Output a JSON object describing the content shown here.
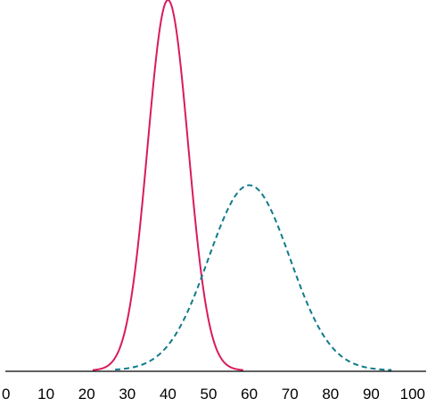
{
  "chart_data": {
    "type": "line",
    "title": "",
    "xlabel": "",
    "ylabel": "",
    "xlim": [
      0,
      100
    ],
    "x_ticks": [
      "0",
      "10",
      "20",
      "30",
      "40",
      "50",
      "60",
      "70",
      "80",
      "90",
      "100"
    ],
    "grid": false,
    "legend": "none",
    "series": [
      {
        "style": "solid",
        "color": "#d81b60",
        "curve": "normal",
        "mean": 40,
        "sd": 5,
        "x_range": [
          21.5,
          58.5
        ],
        "relative_peak": 1.0
      },
      {
        "style": "dashed",
        "color": "#117a8b",
        "curve": "normal",
        "mean": 60,
        "sd": 10,
        "x_range": [
          27,
          95
        ],
        "relative_peak": 0.5
      }
    ]
  }
}
